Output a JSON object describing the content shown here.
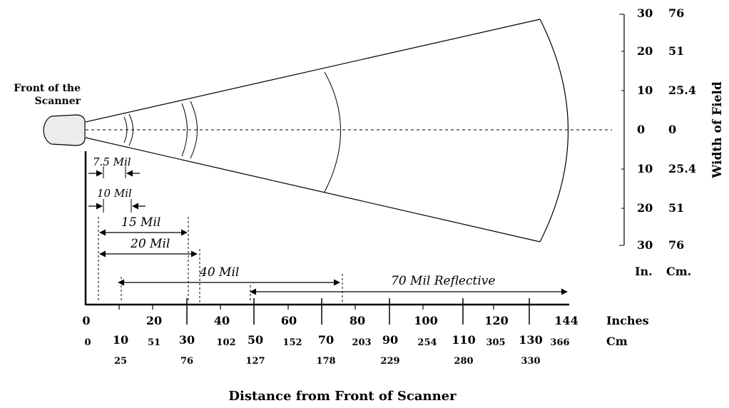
{
  "scanner_label_line1": "Front of the",
  "scanner_label_line2": "Scanner",
  "width_axis": {
    "title": "Width of Field",
    "inches": [
      "30",
      "20",
      "10",
      "0",
      "10",
      "20",
      "30"
    ],
    "cm": [
      "76",
      "51",
      "25.4",
      "0",
      "25.4",
      "51",
      "76"
    ],
    "unit_in": "In.",
    "unit_cm": "Cm."
  },
  "ranges": [
    {
      "label": "7.5 Mil"
    },
    {
      "label": "10 Mil"
    },
    {
      "label": "15 Mil"
    },
    {
      "label": "20 Mil"
    },
    {
      "label": "40 Mil"
    },
    {
      "label": "70 Mil Reflective"
    }
  ],
  "distance_axis": {
    "inch_ticks": [
      "0",
      "20",
      "40",
      "60",
      "80",
      "100",
      "120",
      "144"
    ],
    "inch_ticks_odd": [
      "10",
      "30",
      "50",
      "70",
      "90",
      "110",
      "130"
    ],
    "cm_row1": [
      "0",
      "51",
      "102",
      "152",
      "203",
      "254",
      "305",
      "366"
    ],
    "cm_row2": [
      "25",
      "76",
      "127",
      "178",
      "229",
      "280",
      "330"
    ],
    "unit_in": "Inches",
    "unit_cm": "Cm",
    "title": "Distance from Front of Scanner"
  }
}
